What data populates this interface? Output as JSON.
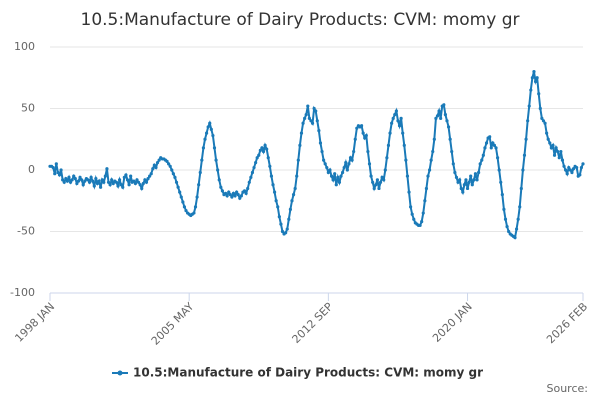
{
  "chart_data": {
    "type": "line",
    "title": "10.5:Manufacture of Dairy Products: CVM: momy gr",
    "source_label": "Source:",
    "ylim": [
      -100,
      100
    ],
    "yticks": [
      -100,
      -50,
      0,
      50,
      100
    ],
    "grid": true,
    "legend": "bottom",
    "categories": [
      "1998 JAN",
      null,
      null,
      null,
      null,
      null,
      null,
      null,
      null,
      null,
      null,
      null,
      null,
      null,
      null,
      null,
      null,
      null,
      null,
      null,
      null,
      null,
      null,
      null,
      null,
      null,
      null,
      null,
      null,
      null,
      null,
      null,
      null,
      null,
      null,
      null,
      null,
      null,
      null,
      null,
      null,
      null,
      null,
      null,
      null,
      null,
      null,
      null,
      null,
      null,
      null,
      null,
      null,
      null,
      null,
      null,
      null,
      null,
      null,
      null,
      null,
      null,
      null,
      null,
      null,
      null,
      null,
      null,
      null,
      null,
      null,
      null,
      null,
      null,
      null,
      null,
      null,
      null,
      null,
      null,
      null,
      null,
      null,
      null,
      null,
      null,
      null,
      null,
      "2005 MAY",
      null,
      null,
      null,
      null,
      null,
      null,
      null,
      null,
      null,
      null,
      null,
      null,
      null,
      null,
      null,
      null,
      null,
      null,
      null,
      null,
      null,
      null,
      null,
      null,
      null,
      null,
      null,
      null,
      null,
      null,
      null,
      null,
      null,
      null,
      null,
      null,
      null,
      null,
      null,
      null,
      null,
      null,
      null,
      null,
      null,
      null,
      null,
      null,
      null,
      null,
      null,
      null,
      null,
      null,
      null,
      null,
      null,
      null,
      null,
      null,
      null,
      null,
      null,
      null,
      null,
      null,
      null,
      null,
      null,
      null,
      null,
      null,
      null,
      null,
      null,
      null,
      null,
      null,
      null,
      null,
      null,
      null,
      null,
      null,
      null,
      null,
      null,
      "2012 SEP",
      null,
      null,
      null,
      null,
      null,
      null,
      null,
      null,
      null,
      null,
      null,
      null,
      null,
      null,
      null,
      null,
      null,
      null,
      null,
      null,
      null,
      null,
      null,
      null,
      null,
      null,
      null,
      null,
      null,
      null,
      null,
      null,
      null,
      null,
      null,
      null,
      null,
      null,
      null,
      null,
      null,
      null,
      null,
      null,
      null,
      null,
      null,
      null,
      null,
      null,
      null,
      null,
      null,
      null,
      null,
      null,
      null,
      null,
      null,
      null,
      null,
      null,
      null,
      null,
      null,
      null,
      null,
      null,
      null,
      null,
      null,
      null,
      null,
      null,
      null,
      null,
      null,
      null,
      null,
      null,
      null,
      null,
      null,
      null,
      null,
      null,
      null,
      "2020 JAN",
      null,
      null,
      null,
      null,
      null,
      null,
      null,
      null,
      null,
      null,
      null,
      null,
      null,
      null,
      null,
      null,
      null,
      null,
      null,
      null,
      null,
      null,
      null,
      null,
      null,
      null,
      null,
      null,
      null,
      null,
      null,
      null,
      null,
      null,
      null,
      null,
      null,
      null,
      null,
      null,
      null,
      null,
      null,
      null,
      null,
      null,
      null,
      null,
      null,
      null,
      null,
      null,
      null,
      null,
      null,
      null,
      null,
      null,
      null,
      null,
      null,
      null,
      null,
      null,
      null,
      null,
      null,
      null,
      null,
      null,
      null,
      null,
      "2026 FEB"
    ],
    "series": [
      {
        "name": "10.5:Manufacture of Dairy Products: CVM: momy gr",
        "color": "#1a7ab8",
        "values": [
          3,
          3,
          2,
          -3,
          5,
          -2,
          -4,
          0,
          -8,
          -10,
          -7,
          -9,
          -6,
          -10,
          -8,
          -5,
          -7,
          -11,
          -9,
          -6,
          -8,
          -12,
          -9,
          -7,
          -8,
          -10,
          -6,
          -9,
          -13,
          -7,
          -11,
          -9,
          -14,
          -8,
          -10,
          -5,
          1,
          -10,
          -12,
          -8,
          -11,
          -9,
          -10,
          -13,
          -8,
          -12,
          -14,
          -6,
          -4,
          -8,
          -12,
          -5,
          -10,
          -9,
          -11,
          -8,
          -10,
          -12,
          -15,
          -11,
          -8,
          -10,
          -7,
          -5,
          -3,
          1,
          4,
          2,
          6,
          8,
          10,
          9,
          9,
          8,
          7,
          5,
          3,
          0,
          -3,
          -6,
          -10,
          -14,
          -18,
          -22,
          -26,
          -30,
          -33,
          -35,
          -36,
          -37,
          -36,
          -35,
          -30,
          -22,
          -12,
          -2,
          8,
          18,
          25,
          30,
          35,
          38,
          33,
          28,
          18,
          8,
          0,
          -8,
          -14,
          -17,
          -20,
          -19,
          -21,
          -18,
          -20,
          -22,
          -19,
          -21,
          -18,
          -20,
          -23,
          -21,
          -18,
          -17,
          -19,
          -15,
          -10,
          -6,
          -2,
          2,
          6,
          10,
          12,
          16,
          18,
          15,
          20,
          17,
          10,
          3,
          -5,
          -12,
          -18,
          -25,
          -30,
          -38,
          -44,
          -50,
          -52,
          -51,
          -48,
          -40,
          -32,
          -25,
          -20,
          -15,
          -5,
          8,
          20,
          30,
          38,
          42,
          45,
          52,
          42,
          40,
          38,
          50,
          48,
          40,
          32,
          22,
          15,
          8,
          5,
          2,
          -2,
          0,
          -5,
          -8,
          -3,
          -12,
          -6,
          -10,
          -5,
          -2,
          2,
          6,
          0,
          5,
          10,
          8,
          15,
          25,
          34,
          36,
          35,
          36,
          30,
          26,
          28,
          15,
          5,
          -5,
          -10,
          -15,
          -12,
          -8,
          -15,
          -10,
          -6,
          -8,
          0,
          10,
          20,
          30,
          38,
          42,
          45,
          48,
          40,
          36,
          42,
          30,
          20,
          8,
          -5,
          -18,
          -30,
          -36,
          -40,
          -43,
          -44,
          -45,
          -45,
          -42,
          -35,
          -25,
          -15,
          -5,
          0,
          8,
          15,
          25,
          42,
          44,
          48,
          42,
          52,
          53,
          45,
          40,
          35,
          25,
          15,
          5,
          -2,
          -6,
          -10,
          -8,
          -15,
          -18,
          -12,
          -8,
          -15,
          -10,
          -5,
          -12,
          -8,
          -3,
          -8,
          -2,
          5,
          8,
          12,
          18,
          22,
          26,
          27,
          18,
          22,
          20,
          18,
          10,
          0,
          -10,
          -20,
          -32,
          -40,
          -46,
          -50,
          -52,
          -53,
          -54,
          -55,
          -48,
          -40,
          -30,
          -15,
          0,
          12,
          25,
          40,
          52,
          65,
          75,
          80,
          72,
          75,
          62,
          50,
          42,
          40,
          38,
          30,
          25,
          22,
          18,
          20,
          12,
          18,
          15,
          10,
          15,
          8,
          3,
          0,
          -3,
          2,
          0,
          -2,
          1,
          3,
          2,
          -5,
          -4,
          2,
          5
        ]
      }
    ]
  }
}
